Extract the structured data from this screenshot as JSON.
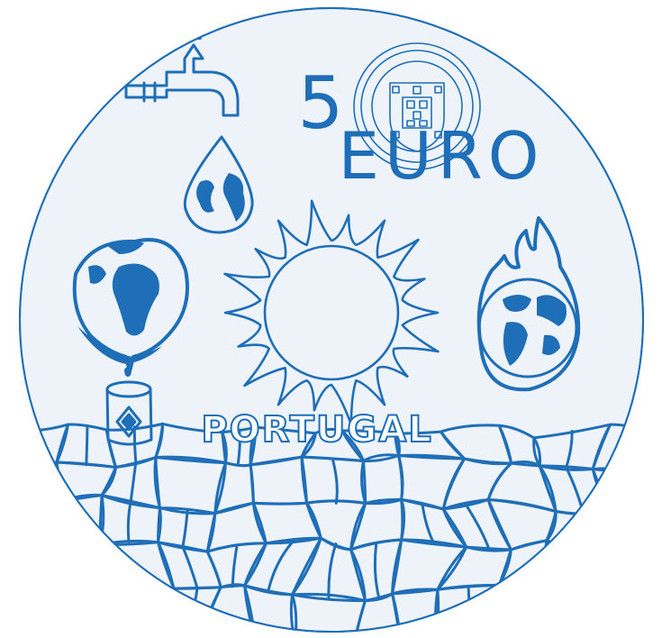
{
  "coin": {
    "denomination": "5",
    "currency": "EURO",
    "country": "PORTUGAL"
  },
  "colors": {
    "ink": "#1f6fb8",
    "face": "#eef3fa",
    "rim": "#1f6fb8",
    "background": "#ffffff"
  },
  "icons": [
    "water-tap-icon",
    "earth-water-drop-icon",
    "national-coat-of-arms-seal",
    "sun-icon",
    "burning-earth-icon",
    "melting-earth-icon",
    "oil-barrel-icon",
    "cracked-dry-ground"
  ]
}
